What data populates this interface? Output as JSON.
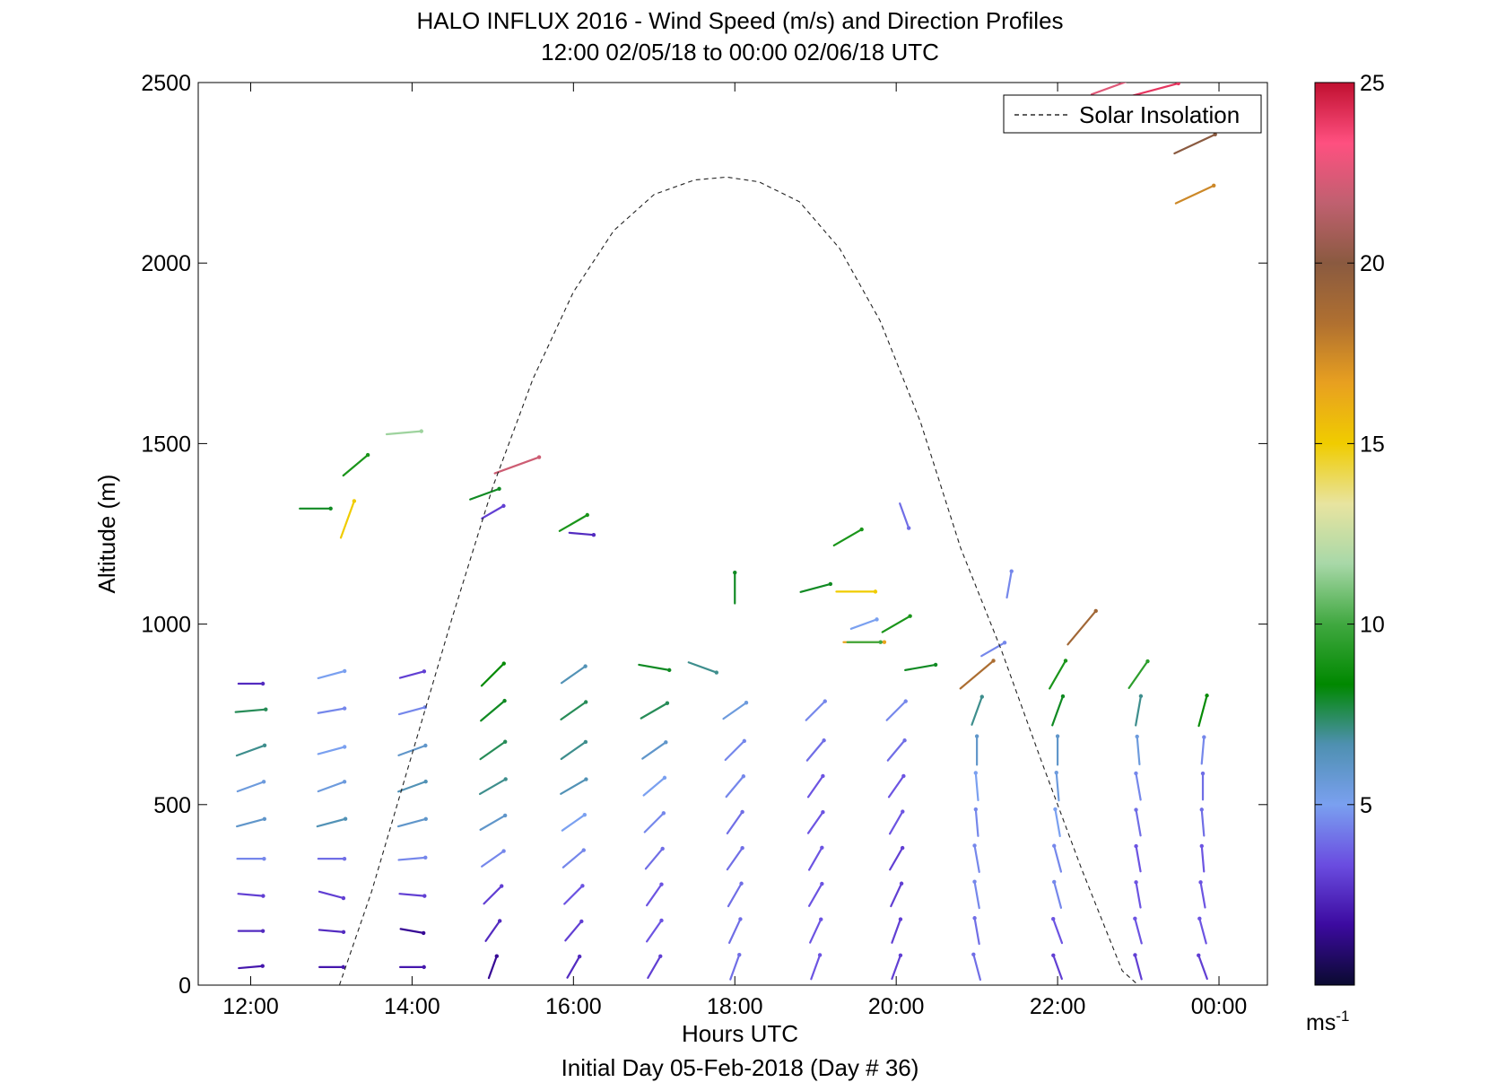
{
  "chart_data": {
    "type": "scatter",
    "title": "HALO INFLUX 2016 - Wind Speed (m/s) and Direction Profiles",
    "subtitle": "12:00 02/05/18 to 00:00 02/06/18  UTC",
    "xlabel": "Hours UTC",
    "ylabel": "Altitude (m)",
    "footer": "Initial Day 05-Feb-2018 (Day # 36)",
    "xlim": [
      11.35,
      24.6
    ],
    "ylim": [
      0,
      2500
    ],
    "x_tick_labels": [
      "12:00",
      "14:00",
      "16:00",
      "18:00",
      "20:00",
      "22:00",
      "00:00"
    ],
    "x_tick_values": [
      12,
      14,
      16,
      18,
      20,
      22,
      24
    ],
    "y_tick_values": [
      0,
      500,
      1000,
      1500,
      2000,
      2500
    ],
    "legend": {
      "entries": [
        "Solar Insolation"
      ],
      "placement": "top-right"
    },
    "colorbar": {
      "min": 0,
      "max": 25,
      "ticks": [
        5,
        10,
        15,
        20,
        25
      ],
      "unit_label": "ms",
      "unit_exponent": "-1",
      "colors": [
        "#0a0a30",
        "#3c0aa0",
        "#6a4ce0",
        "#7aa0f0",
        "#4e90b0",
        "#008800",
        "#40a840",
        "#a8d8a8",
        "#e8e4a0",
        "#f0cc00",
        "#e8a020",
        "#b07030",
        "#8a5a40",
        "#c06070",
        "#ff5080",
        "#c01030"
      ]
    },
    "series": [
      {
        "name": "Solar Insolation",
        "style": "dashed",
        "x": [
          13.1,
          13.5,
          14.0,
          14.5,
          15.0,
          15.5,
          16.0,
          16.5,
          17.0,
          17.5,
          17.9,
          18.3,
          18.8,
          19.3,
          19.8,
          20.3,
          20.8,
          21.3,
          21.8,
          22.3,
          22.8,
          23.0
        ],
        "y": [
          0,
          260,
          640,
          1020,
          1380,
          1680,
          1920,
          2090,
          2190,
          2230,
          2238,
          2225,
          2170,
          2040,
          1840,
          1560,
          1210,
          930,
          620,
          320,
          40,
          0
        ]
      },
      {
        "name": "",
        "marker": "wind-vector",
        "note_fields": [
          "x",
          "y",
          "speed_ms",
          "dir_deg"
        ],
        "points": [
          [
            12.0,
            50,
            2.0,
            265
          ],
          [
            12.0,
            150,
            2.5,
            270
          ],
          [
            12.0,
            250,
            3.0,
            275
          ],
          [
            12.0,
            350,
            4.5,
            270
          ],
          [
            12.0,
            450,
            6.0,
            255
          ],
          [
            12.0,
            550,
            5.5,
            250
          ],
          [
            12.0,
            650,
            7.0,
            250
          ],
          [
            12.0,
            760,
            7.5,
            265
          ],
          [
            12.0,
            835,
            2.5,
            270
          ],
          [
            13.0,
            50,
            2.0,
            270
          ],
          [
            13.0,
            150,
            2.5,
            275
          ],
          [
            13.0,
            250,
            3.0,
            285
          ],
          [
            13.0,
            350,
            4.0,
            270
          ],
          [
            13.0,
            450,
            6.5,
            255
          ],
          [
            13.0,
            550,
            5.5,
            250
          ],
          [
            13.0,
            650,
            5.0,
            255
          ],
          [
            13.0,
            760,
            4.5,
            260
          ],
          [
            13.0,
            860,
            5.0,
            255
          ],
          [
            14.0,
            50,
            2.0,
            270
          ],
          [
            14.0,
            150,
            1.5,
            280
          ],
          [
            14.0,
            250,
            3.0,
            275
          ],
          [
            14.0,
            350,
            4.5,
            265
          ],
          [
            14.0,
            450,
            6.0,
            255
          ],
          [
            14.0,
            550,
            6.5,
            250
          ],
          [
            14.0,
            650,
            6.0,
            250
          ],
          [
            14.0,
            760,
            4.5,
            255
          ],
          [
            14.0,
            860,
            3.0,
            255
          ],
          [
            15.0,
            50,
            1.5,
            200
          ],
          [
            15.0,
            150,
            2.5,
            215
          ],
          [
            15.0,
            250,
            3.0,
            225
          ],
          [
            15.0,
            350,
            4.5,
            235
          ],
          [
            15.0,
            450,
            6.0,
            240
          ],
          [
            15.0,
            550,
            7.0,
            240
          ],
          [
            15.0,
            650,
            7.5,
            235
          ],
          [
            15.0,
            760,
            8.0,
            230
          ],
          [
            15.0,
            860,
            8.5,
            225
          ],
          [
            16.0,
            50,
            2.5,
            210
          ],
          [
            16.0,
            150,
            3.0,
            220
          ],
          [
            16.0,
            250,
            3.5,
            225
          ],
          [
            16.0,
            350,
            4.5,
            230
          ],
          [
            16.0,
            450,
            5.0,
            235
          ],
          [
            16.0,
            550,
            6.5,
            240
          ],
          [
            16.0,
            650,
            7.0,
            235
          ],
          [
            16.0,
            760,
            7.5,
            235
          ],
          [
            16.0,
            860,
            6.5,
            235
          ],
          [
            17.0,
            50,
            3.0,
            210
          ],
          [
            17.0,
            150,
            3.5,
            215
          ],
          [
            17.0,
            250,
            3.5,
            215
          ],
          [
            17.0,
            350,
            4.0,
            220
          ],
          [
            17.0,
            450,
            4.5,
            225
          ],
          [
            17.0,
            550,
            5.0,
            230
          ],
          [
            17.0,
            650,
            6.0,
            235
          ],
          [
            17.0,
            760,
            7.5,
            240
          ],
          [
            17.0,
            880,
            8.0,
            280
          ],
          [
            18.0,
            50,
            4.0,
            200
          ],
          [
            18.0,
            150,
            4.0,
            205
          ],
          [
            18.0,
            250,
            4.0,
            210
          ],
          [
            18.0,
            350,
            4.0,
            215
          ],
          [
            18.0,
            450,
            4.0,
            215
          ],
          [
            18.0,
            550,
            4.5,
            220
          ],
          [
            18.0,
            650,
            4.5,
            225
          ],
          [
            18.0,
            760,
            5.5,
            235
          ],
          [
            18.0,
            1100,
            8.0,
            180
          ],
          [
            19.0,
            50,
            3.5,
            200
          ],
          [
            19.0,
            150,
            3.5,
            205
          ],
          [
            19.0,
            250,
            3.5,
            210
          ],
          [
            19.0,
            350,
            3.5,
            210
          ],
          [
            19.0,
            450,
            3.5,
            215
          ],
          [
            19.0,
            550,
            3.5,
            215
          ],
          [
            19.0,
            650,
            4.0,
            220
          ],
          [
            19.0,
            760,
            4.5,
            225
          ],
          [
            19.0,
            1100,
            8.0,
            255
          ],
          [
            20.0,
            50,
            3.0,
            200
          ],
          [
            20.0,
            150,
            3.0,
            200
          ],
          [
            20.0,
            250,
            3.0,
            205
          ],
          [
            20.0,
            350,
            3.0,
            210
          ],
          [
            20.0,
            450,
            3.5,
            210
          ],
          [
            20.0,
            550,
            3.5,
            215
          ],
          [
            20.0,
            650,
            4.0,
            220
          ],
          [
            20.0,
            760,
            4.5,
            225
          ],
          [
            20.0,
            1000,
            9.0,
            240
          ],
          [
            21.0,
            50,
            4.0,
            165
          ],
          [
            21.0,
            150,
            4.0,
            170
          ],
          [
            21.0,
            250,
            4.5,
            170
          ],
          [
            21.0,
            350,
            4.5,
            170
          ],
          [
            21.0,
            450,
            4.5,
            175
          ],
          [
            21.0,
            550,
            5.0,
            175
          ],
          [
            21.0,
            650,
            6.0,
            180
          ],
          [
            21.0,
            760,
            7.0,
            200
          ],
          [
            21.0,
            860,
            18.5,
            230
          ],
          [
            22.0,
            50,
            3.0,
            160
          ],
          [
            22.0,
            150,
            3.5,
            160
          ],
          [
            22.0,
            250,
            4.5,
            165
          ],
          [
            22.0,
            350,
            4.5,
            165
          ],
          [
            22.0,
            450,
            5.0,
            170
          ],
          [
            22.0,
            550,
            5.5,
            175
          ],
          [
            22.0,
            650,
            6.0,
            180
          ],
          [
            22.0,
            760,
            8.0,
            200
          ],
          [
            22.0,
            860,
            9.0,
            210
          ],
          [
            23.0,
            50,
            3.0,
            165
          ],
          [
            23.0,
            150,
            3.5,
            165
          ],
          [
            23.0,
            250,
            3.5,
            170
          ],
          [
            23.0,
            350,
            3.5,
            170
          ],
          [
            23.0,
            450,
            4.0,
            170
          ],
          [
            23.0,
            550,
            4.5,
            170
          ],
          [
            23.0,
            650,
            5.5,
            175
          ],
          [
            23.0,
            760,
            7.0,
            190
          ],
          [
            23.0,
            860,
            9.5,
            215
          ],
          [
            23.8,
            50,
            3.0,
            160
          ],
          [
            23.8,
            150,
            3.5,
            165
          ],
          [
            23.8,
            250,
            3.5,
            170
          ],
          [
            23.8,
            350,
            3.5,
            175
          ],
          [
            23.8,
            450,
            4.0,
            175
          ],
          [
            23.8,
            550,
            4.0,
            180
          ],
          [
            23.8,
            650,
            4.5,
            185
          ],
          [
            23.8,
            760,
            8.5,
            195
          ],
          [
            12.8,
            1320,
            8.0,
            270
          ],
          [
            13.2,
            1290,
            15.0,
            200
          ],
          [
            13.3,
            1440,
            9.0,
            230
          ],
          [
            13.9,
            1530,
            11.5,
            265
          ],
          [
            14.9,
            1360,
            8.0,
            250
          ],
          [
            15.3,
            1440,
            22.0,
            250
          ],
          [
            15.0,
            1310,
            3.0,
            240
          ],
          [
            16.1,
            1250,
            2.5,
            275
          ],
          [
            16.0,
            1280,
            9.0,
            240
          ],
          [
            17.6,
            880,
            7.0,
            290
          ],
          [
            19.4,
            1240,
            9.0,
            240
          ],
          [
            19.5,
            1090,
            15.0,
            270
          ],
          [
            19.6,
            1000,
            5.0,
            250
          ],
          [
            19.6,
            950,
            16.5,
            270
          ],
          [
            19.6,
            950,
            10.0,
            270
          ],
          [
            20.1,
            1300,
            4.0,
            340
          ],
          [
            20.3,
            880,
            8.0,
            260
          ],
          [
            21.2,
            930,
            4.5,
            240
          ],
          [
            21.4,
            1110,
            4.5,
            190
          ],
          [
            22.3,
            990,
            19.0,
            220
          ],
          [
            22.7,
            2490,
            22.5,
            250
          ],
          [
            23.2,
            2480,
            24.0,
            255
          ],
          [
            23.7,
            2410,
            21.0,
            245
          ],
          [
            23.7,
            2330,
            20.0,
            245
          ],
          [
            23.7,
            2190,
            17.5,
            245
          ]
        ]
      }
    ]
  }
}
